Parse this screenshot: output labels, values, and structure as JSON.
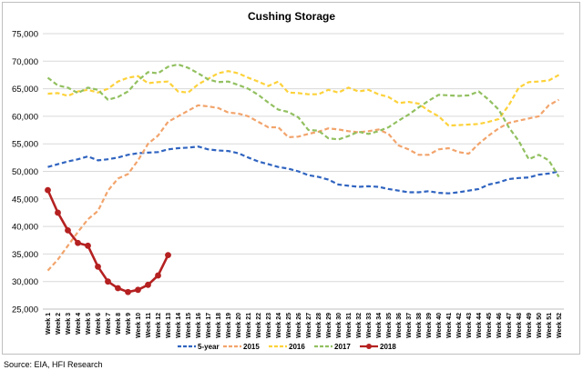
{
  "chart_data": {
    "type": "line",
    "title": "Cushing Storage",
    "source": "Source: EIA, HFI Research",
    "categories": [
      "Week 1",
      "Week 2",
      "Week 3",
      "Week 4",
      "Week 5",
      "Week 6",
      "Week 7",
      "Week 8",
      "Week 9",
      "Week 10",
      "Week 11",
      "Week 12",
      "Week 13",
      "Week 14",
      "Week 15",
      "Week 16",
      "Week 17",
      "Week 18",
      "Week 19",
      "Week 20",
      "Week 21",
      "Week 22",
      "Week 23",
      "Week 24",
      "Week 25",
      "Week 26",
      "Week 27",
      "Week 28",
      "Week 29",
      "Week 30",
      "Week 31",
      "Week 32",
      "Week 33",
      "Week 34",
      "Week 35",
      "Week 36",
      "Week 37",
      "Week 38",
      "Week 39",
      "Week 40",
      "Week 41",
      "Week 42",
      "Week 43",
      "Week 44",
      "Week 45",
      "Week 46",
      "Week 47",
      "Week 48",
      "Week 49",
      "Week 50",
      "Week 51",
      "Week 52"
    ],
    "series": [
      {
        "name": "5-year",
        "color": "#3064c0",
        "dashed": true,
        "values": [
          50800,
          51300,
          51800,
          52200,
          52700,
          52000,
          52200,
          52500,
          53000,
          53300,
          53400,
          53500,
          54000,
          54200,
          54300,
          54500,
          54000,
          53800,
          53700,
          53300,
          52500,
          51800,
          51300,
          50800,
          50500,
          50000,
          49300,
          49000,
          48500,
          47600,
          47400,
          47200,
          47300,
          47200,
          46800,
          46500,
          46200,
          46200,
          46400,
          46100,
          46000,
          46200,
          46500,
          46800,
          47600,
          48000,
          48600,
          48800,
          48900,
          49400,
          49600,
          50000
        ]
      },
      {
        "name": "2015",
        "color": "#f2a46c",
        "dashed": true,
        "values": [
          32000,
          34000,
          36500,
          39000,
          41300,
          42800,
          46500,
          48700,
          49500,
          52000,
          55000,
          56500,
          59000,
          60000,
          61000,
          62000,
          61800,
          61500,
          60700,
          60500,
          60000,
          59000,
          58000,
          58000,
          56200,
          56300,
          56800,
          57200,
          57800,
          57600,
          57300,
          57100,
          57300,
          57600,
          56800,
          54700,
          54000,
          53000,
          53000,
          54000,
          54200,
          53500,
          53200,
          55000,
          56500,
          57800,
          58800,
          59200,
          59600,
          60000,
          62000,
          63000
        ]
      },
      {
        "name": "2016",
        "color": "#fdd23a",
        "dashed": true,
        "values": [
          64100,
          64200,
          63700,
          64500,
          64800,
          64300,
          65000,
          66300,
          67000,
          67300,
          66000,
          66200,
          66300,
          64500,
          64300,
          65800,
          66800,
          67800,
          68200,
          67800,
          67000,
          66300,
          65500,
          66300,
          64300,
          64200,
          64000,
          64000,
          64800,
          64300,
          65200,
          64500,
          64800,
          64000,
          63500,
          62400,
          62600,
          62300,
          61000,
          60000,
          58300,
          58400,
          58500,
          58600,
          59000,
          59500,
          62000,
          65200,
          66200,
          66300,
          66500,
          67500
        ]
      },
      {
        "name": "2017",
        "color": "#92c060",
        "dashed": true,
        "values": [
          67000,
          65600,
          65200,
          64200,
          65200,
          64800,
          63000,
          63500,
          64500,
          66500,
          68000,
          67800,
          69000,
          69400,
          68800,
          67800,
          66700,
          66200,
          66300,
          65700,
          65000,
          63900,
          62500,
          61200,
          60800,
          59800,
          57500,
          57400,
          56000,
          55800,
          56400,
          57200,
          56800,
          57300,
          58000,
          59200,
          60300,
          61600,
          62800,
          63900,
          63800,
          63700,
          63800,
          64500,
          63000,
          61200,
          58000,
          55500,
          52200,
          53000,
          52000,
          49000
        ]
      },
      {
        "name": "2018",
        "color": "#b52121",
        "dashed": false,
        "markers": true,
        "values": [
          46600,
          42500,
          39300,
          37000,
          36500,
          32700,
          30000,
          28800,
          28100,
          28500,
          29400,
          31100,
          34800,
          null,
          null,
          null,
          null,
          null,
          null,
          null,
          null,
          null,
          null,
          null,
          null,
          null,
          null,
          null,
          null,
          null,
          null,
          null,
          null,
          null,
          null,
          null,
          null,
          null,
          null,
          null,
          null,
          null,
          null,
          null,
          null,
          null,
          null,
          null,
          null,
          null,
          null,
          null
        ]
      }
    ],
    "ylim": [
      25000,
      75000
    ],
    "yticks": [
      {
        "value": 25000,
        "label": "25,000"
      },
      {
        "value": 30000,
        "label": "30,000"
      },
      {
        "value": 35000,
        "label": "35,000"
      },
      {
        "value": 40000,
        "label": "40,000"
      },
      {
        "value": 45000,
        "label": "45,000"
      },
      {
        "value": 50000,
        "label": "50,000"
      },
      {
        "value": 55000,
        "label": "55,000"
      },
      {
        "value": 60000,
        "label": "60,000"
      },
      {
        "value": 65000,
        "label": "65,000"
      },
      {
        "value": 70000,
        "label": "70,000"
      },
      {
        "value": 75000,
        "label": "75,000"
      }
    ],
    "grid": true,
    "legend": "bottom"
  }
}
